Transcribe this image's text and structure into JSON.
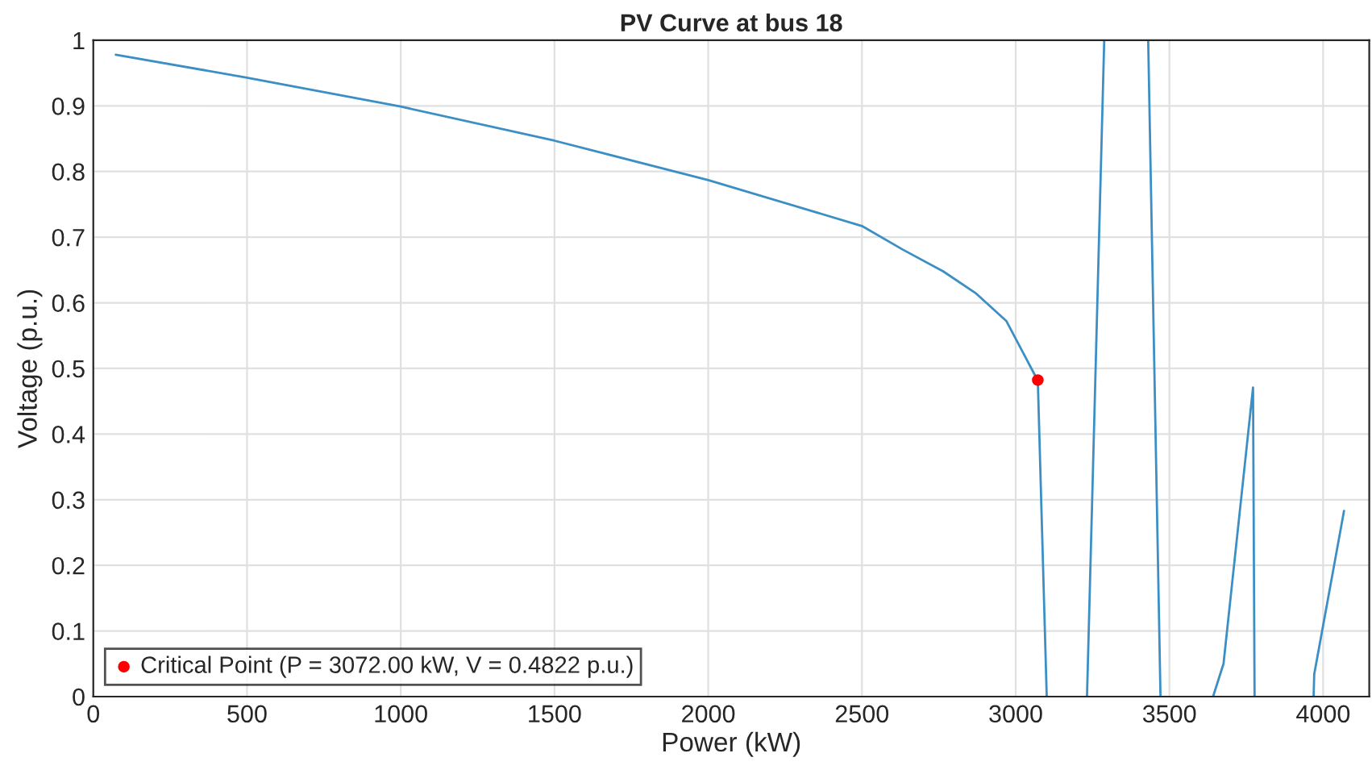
{
  "chart_data": {
    "type": "line",
    "title": "PV Curve at bus 18",
    "xlabel": "Power (kW)",
    "ylabel": "Voltage (p.u.)",
    "xlim": [
      0,
      4150
    ],
    "xticks": [
      0,
      500,
      1000,
      1500,
      2000,
      2500,
      3000,
      3500,
      4000
    ],
    "ylim": [
      0,
      1
    ],
    "yticks": [
      0,
      0.1,
      0.2,
      0.3,
      0.4,
      0.5,
      0.6,
      0.7,
      0.8,
      0.9,
      1
    ],
    "grid": true,
    "legend": "bottom left",
    "series": [
      {
        "color": "#3b8fc4",
        "x": [
          73,
          500,
          1000,
          1500,
          2000,
          2500,
          2633,
          2764,
          2869,
          2970,
          3069,
          3072,
          3101,
          null,
          3232,
          3288,
          null,
          3431,
          3471,
          null,
          3642,
          3676,
          3772,
          3777,
          null,
          3969,
          3971,
          4068
        ],
        "values": [
          0.978,
          0.943,
          0.899,
          0.847,
          0.787,
          0.717,
          0.681,
          0.648,
          0.615,
          0.572,
          0.484,
          0.482,
          0,
          null,
          0,
          1,
          null,
          1,
          0,
          null,
          0,
          0.05,
          0.471,
          0,
          null,
          0,
          0.034,
          0.283
        ]
      },
      {
        "type": "scatter",
        "name": "Critical Point (P = 3072.00 kW, V = 0.4822 p.u.)",
        "color": "#ff0000",
        "marker": "circle",
        "x": [
          3072
        ],
        "values": [
          0.4822
        ]
      }
    ]
  }
}
